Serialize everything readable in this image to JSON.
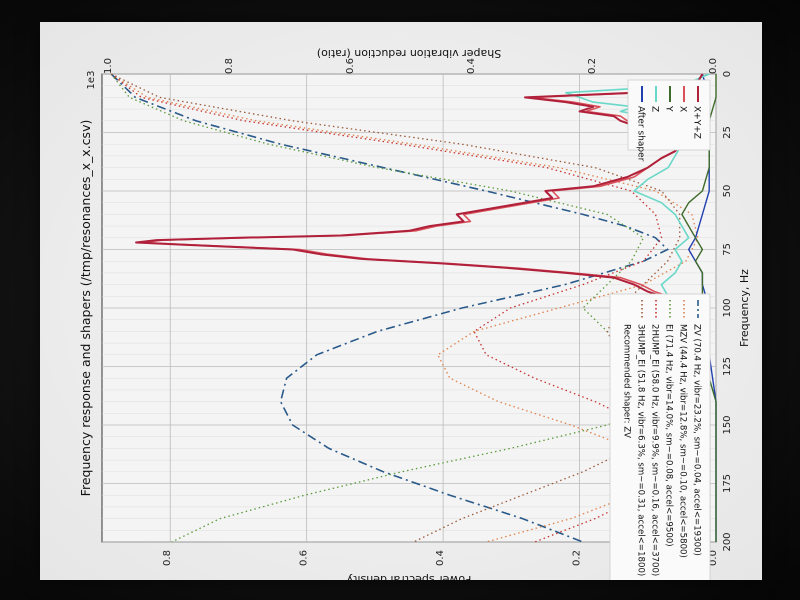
{
  "chart_data": {
    "type": "line",
    "orientation_note_rotated": "rotated 90deg clockwise in photo",
    "title": "Frequency response and shapers (/tmp/resonances_x_x.csv)",
    "xlabel": "Frequency, Hz",
    "ylabel": "Power spectral density",
    "y2label": "Shaper vibration reduction (ratio)",
    "scale_label": "1e3",
    "xlim": [
      0,
      200
    ],
    "ylim": [
      0,
      0.9
    ],
    "y2lim": [
      0,
      1.0
    ],
    "x_ticks": [
      "0",
      "25",
      "50",
      "75",
      "100",
      "125",
      "150",
      "175",
      "200"
    ],
    "y_ticks": [
      "0.0",
      "0.2",
      "0.4",
      "0.6",
      "0.8"
    ],
    "y2_ticks": [
      "0.0",
      "0.2",
      "0.4",
      "0.6",
      "0.8",
      "1.0"
    ],
    "legend_left": [
      {
        "label": "X+Y+Z",
        "color": "#b0203a",
        "style": "solid"
      },
      {
        "label": "X",
        "color": "#d9505a",
        "style": "solid"
      },
      {
        "label": "Y",
        "color": "#3f6b2a",
        "style": "solid"
      },
      {
        "label": "Z",
        "color": "#6ad8c8",
        "style": "solid"
      },
      {
        "label": "After shaper",
        "color": "#2040b0",
        "style": "solid"
      }
    ],
    "legend_right": [
      {
        "label": "ZV (70.4 Hz, vibr=23.2%, sm~=0.04, accel<=19300)",
        "color": "#2a5a8a",
        "style": "dashdot"
      },
      {
        "label": "MZV (44.4 Hz, vibr=12.8%, sm~=0.10, accel<=5800)",
        "color": "#e0804a",
        "style": "dotted"
      },
      {
        "label": "EI (71.4 Hz, vibr=14.0%, sm~=0.08, accel<=9500)",
        "color": "#5a9a3a",
        "style": "dotted"
      },
      {
        "label": "2HUMP_EI (58.0 Hz, vibr=9.9%, sm~=0.16, accel<=3700)",
        "color": "#c83030",
        "style": "dotted"
      },
      {
        "label": "3HUMP_EI (51.8 Hz, vibr=6.3%, sm~=0.31, accel<=1800)",
        "color": "#9a5a3a",
        "style": "dotted"
      }
    ],
    "recommended": "Recommended shaper: ZV",
    "series": [
      {
        "name": "X+Y+Z",
        "color": "#b0203a",
        "width": 2,
        "x": [
          0,
          5,
          8,
          10,
          12,
          14,
          16,
          18,
          20,
          22,
          25,
          28,
          30,
          33,
          36,
          40,
          44,
          48,
          50,
          53,
          56,
          60,
          63,
          65,
          67,
          69,
          70,
          71,
          72,
          73,
          75,
          77,
          79,
          81,
          83,
          85,
          87,
          90,
          93,
          95,
          97,
          100,
          103,
          106,
          110,
          115,
          120,
          125,
          130,
          135,
          140,
          150,
          160,
          175,
          200
        ],
        "y": [
          0.02,
          0.03,
          0.12,
          0.28,
          0.22,
          0.18,
          0.2,
          0.15,
          0.14,
          0.12,
          0.1,
          0.07,
          0.05,
          0.06,
          0.08,
          0.1,
          0.13,
          0.18,
          0.25,
          0.24,
          0.3,
          0.38,
          0.37,
          0.42,
          0.45,
          0.55,
          0.7,
          0.82,
          0.85,
          0.78,
          0.62,
          0.58,
          0.52,
          0.4,
          0.3,
          0.22,
          0.15,
          0.12,
          0.1,
          0.08,
          0.07,
          0.06,
          0.04,
          0.05,
          0.03,
          0.03,
          0.02,
          0.02,
          0.01,
          0.02,
          0.01,
          0.01,
          0.01,
          0.01,
          0.01
        ]
      },
      {
        "name": "X",
        "color": "#d9505a",
        "width": 1.6,
        "x": [
          0,
          5,
          8,
          10,
          12,
          14,
          16,
          18,
          20,
          22,
          25,
          28,
          30,
          33,
          36,
          40,
          44,
          48,
          50,
          53,
          56,
          60,
          63,
          65,
          67,
          69,
          70,
          71,
          72,
          73,
          75,
          77,
          79,
          81,
          83,
          85,
          87,
          90,
          93,
          95,
          97,
          100,
          103,
          106,
          110,
          115,
          120,
          125,
          130,
          135,
          140,
          150,
          160,
          175,
          200
        ],
        "y": [
          0.02,
          0.03,
          0.11,
          0.27,
          0.21,
          0.17,
          0.19,
          0.14,
          0.13,
          0.11,
          0.09,
          0.06,
          0.05,
          0.06,
          0.08,
          0.1,
          0.12,
          0.17,
          0.24,
          0.23,
          0.29,
          0.37,
          0.36,
          0.41,
          0.44,
          0.54,
          0.69,
          0.81,
          0.84,
          0.77,
          0.61,
          0.57,
          0.51,
          0.39,
          0.29,
          0.21,
          0.14,
          0.11,
          0.09,
          0.07,
          0.06,
          0.05,
          0.04,
          0.04,
          0.03,
          0.02,
          0.02,
          0.02,
          0.01,
          0.01,
          0.01,
          0.01,
          0.01,
          0.01,
          0.01
        ]
      },
      {
        "name": "Z",
        "color": "#6ad8c8",
        "width": 1.6,
        "x": [
          0,
          5,
          8,
          10,
          12,
          14,
          16,
          18,
          20,
          22,
          25,
          28,
          30,
          35,
          40,
          45,
          50,
          55,
          60,
          65,
          70,
          75,
          80,
          85,
          90,
          95,
          100,
          105,
          110,
          115,
          120,
          130,
          140,
          160,
          180,
          200
        ],
        "y": [
          0.01,
          0.05,
          0.22,
          0.2,
          0.18,
          0.12,
          0.14,
          0.1,
          0.08,
          0.07,
          0.05,
          0.04,
          0.05,
          0.06,
          0.07,
          0.1,
          0.12,
          0.08,
          0.06,
          0.05,
          0.04,
          0.06,
          0.05,
          0.06,
          0.08,
          0.07,
          0.05,
          0.03,
          0.02,
          0.02,
          0.01,
          0.01,
          0.01,
          0.01,
          0.01,
          0.01
        ]
      },
      {
        "name": "Y",
        "color": "#3f6b2a",
        "width": 1.4,
        "x": [
          0,
          10,
          20,
          30,
          40,
          50,
          55,
          60,
          65,
          70,
          75,
          80,
          85,
          90,
          95,
          100,
          110,
          120,
          130,
          140,
          160,
          200
        ],
        "y": [
          0.0,
          0.0,
          0.01,
          0.01,
          0.01,
          0.02,
          0.04,
          0.05,
          0.04,
          0.03,
          0.02,
          0.03,
          0.02,
          0.02,
          0.02,
          0.01,
          0.01,
          0.01,
          0.01,
          0.0,
          0.0,
          0.0
        ]
      },
      {
        "name": "After shaper",
        "color": "#2040b0",
        "width": 1.4,
        "x": [
          0,
          10,
          20,
          30,
          40,
          50,
          60,
          70,
          75,
          80,
          85,
          90,
          100,
          110,
          120,
          140,
          160,
          200
        ],
        "y": [
          0.02,
          0.01,
          0.01,
          0.01,
          0.01,
          0.01,
          0.02,
          0.03,
          0.04,
          0.03,
          0.02,
          0.02,
          0.01,
          0.01,
          0.01,
          0.0,
          0.0,
          0.0
        ]
      }
    ],
    "shaper_curves": [
      {
        "name": "ZV",
        "color": "#2a5a8a",
        "style": "dashdot",
        "x": [
          0,
          10,
          20,
          30,
          40,
          50,
          60,
          65,
          70,
          75,
          80,
          90,
          100,
          110,
          120,
          130,
          140,
          150,
          160,
          170,
          180,
          190,
          200
        ],
        "y": [
          1.0,
          0.96,
          0.86,
          0.72,
          0.55,
          0.38,
          0.22,
          0.15,
          0.1,
          0.08,
          0.12,
          0.25,
          0.42,
          0.56,
          0.66,
          0.71,
          0.72,
          0.7,
          0.64,
          0.55,
          0.44,
          0.32,
          0.22
        ]
      },
      {
        "name": "MZV",
        "color": "#e0804a",
        "style": "dotted",
        "x": [
          0,
          10,
          20,
          30,
          40,
          50,
          60,
          70,
          80,
          90,
          100,
          110,
          120,
          130,
          140,
          150,
          160,
          170,
          180,
          190,
          200
        ],
        "y": [
          1.0,
          0.94,
          0.76,
          0.5,
          0.26,
          0.1,
          0.04,
          0.03,
          0.05,
          0.12,
          0.26,
          0.4,
          0.46,
          0.44,
          0.36,
          0.24,
          0.14,
          0.1,
          0.14,
          0.24,
          0.38
        ]
      },
      {
        "name": "EI",
        "color": "#5a9a3a",
        "style": "dotted",
        "x": [
          0,
          10,
          20,
          30,
          40,
          50,
          60,
          70,
          80,
          90,
          100,
          110,
          120,
          130,
          140,
          150,
          160,
          170,
          180,
          190,
          200
        ],
        "y": [
          1.0,
          0.97,
          0.88,
          0.74,
          0.56,
          0.34,
          0.18,
          0.12,
          0.14,
          0.18,
          0.22,
          0.18,
          0.1,
          0.06,
          0.08,
          0.18,
          0.34,
          0.52,
          0.68,
          0.82,
          0.9
        ]
      },
      {
        "name": "2HUMP_EI",
        "color": "#c83030",
        "style": "dotted",
        "x": [
          0,
          10,
          20,
          30,
          40,
          50,
          60,
          70,
          80,
          90,
          100,
          110,
          120,
          130,
          140,
          150,
          160,
          170,
          180,
          190,
          200
        ],
        "y": [
          1.0,
          0.95,
          0.78,
          0.52,
          0.28,
          0.14,
          0.1,
          0.09,
          0.12,
          0.22,
          0.34,
          0.4,
          0.38,
          0.3,
          0.2,
          0.12,
          0.08,
          0.08,
          0.12,
          0.2,
          0.3
        ]
      },
      {
        "name": "3HUMP_EI",
        "color": "#9a5a3a",
        "style": "dotted",
        "x": [
          0,
          10,
          20,
          30,
          40,
          50,
          60,
          70,
          80,
          90,
          100,
          110,
          120,
          130,
          140,
          150,
          160,
          170,
          180,
          190,
          200
        ],
        "y": [
          1.0,
          0.92,
          0.7,
          0.42,
          0.2,
          0.09,
          0.06,
          0.06,
          0.08,
          0.12,
          0.16,
          0.18,
          0.16,
          0.12,
          0.1,
          0.1,
          0.14,
          0.22,
          0.32,
          0.42,
          0.5
        ]
      }
    ]
  }
}
